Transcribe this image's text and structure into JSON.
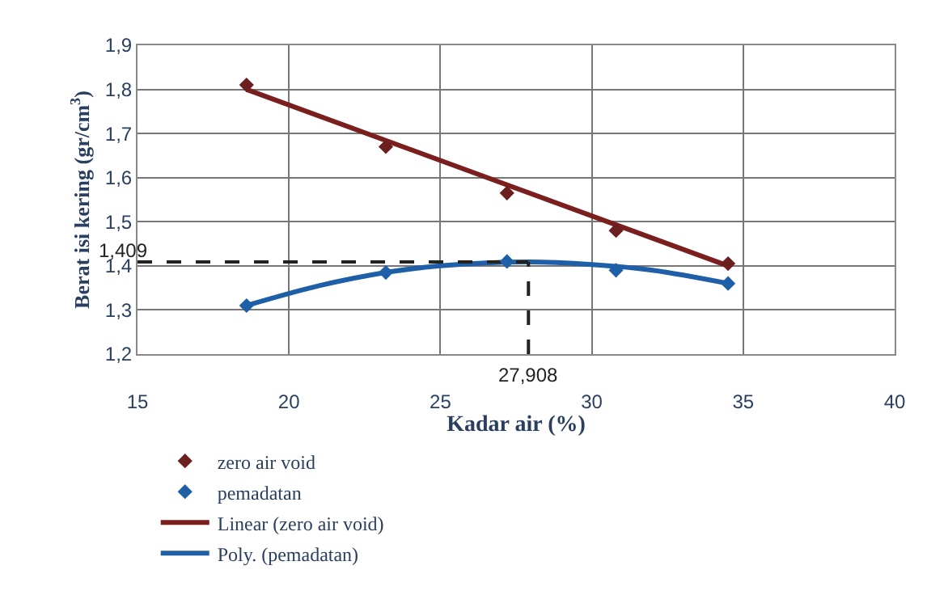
{
  "chart_data": {
    "type": "scatter",
    "xlabel": "Kadar air (%)",
    "ylabel": "Berat isi kering (gr/cm$^{3}$)",
    "xlim": [
      15,
      40
    ],
    "xticks": [
      15,
      20,
      25,
      30,
      35,
      40
    ],
    "ylim": [
      1.2,
      1.9
    ],
    "yticks": [
      {
        "value": 1.2,
        "label": "1,2"
      },
      {
        "value": 1.3,
        "label": "1,3"
      },
      {
        "value": 1.4,
        "label": "1,4"
      },
      {
        "value": 1.5,
        "label": "1,5"
      },
      {
        "value": 1.6,
        "label": "1,6"
      },
      {
        "value": 1.7,
        "label": "1,7"
      },
      {
        "value": 1.8,
        "label": "1,8"
      },
      {
        "value": 1.9,
        "label": "1,9"
      }
    ],
    "grid": true,
    "legend": "bottom",
    "series": [
      {
        "name": "zero air void",
        "marker": "diamond",
        "color": "#6b1f1f",
        "x": [
          18.6,
          23.2,
          27.2,
          30.8,
          34.5
        ],
        "values": [
          1.81,
          1.67,
          1.565,
          1.48,
          1.405
        ]
      },
      {
        "name": "pemadatan",
        "marker": "diamond",
        "color": "#1f5fa8",
        "x": [
          18.6,
          23.2,
          27.2,
          30.8,
          34.5
        ],
        "values": [
          1.31,
          1.385,
          1.41,
          1.39,
          1.36
        ]
      },
      {
        "name": "Linear (zero air void)",
        "type": "line",
        "marker": "none",
        "line_style": "solid",
        "color": "#7b1e1e",
        "x": [
          18.6,
          34.5
        ],
        "values": [
          1.8,
          1.4
        ]
      },
      {
        "name": "Poly. (pemadatan)",
        "type": "line",
        "marker": "none",
        "line_style": "solid",
        "color": "#1f5fa8",
        "x": [
          18.6,
          21,
          23.2,
          25,
          27.908,
          30,
          32,
          34.5
        ],
        "values": [
          1.31,
          1.355,
          1.385,
          1.4,
          1.409,
          1.403,
          1.39,
          1.36
        ]
      },
      {
        "type": "line",
        "marker": "none",
        "line_style": "dashed",
        "color": "#222222",
        "x": [
          15,
          27.908
        ],
        "values": [
          1.409,
          1.409
        ]
      },
      {
        "type": "line",
        "marker": "none",
        "line_style": "dashed",
        "color": "#222222",
        "x": [
          27.908,
          27.908
        ],
        "values": [
          1.2,
          1.409
        ]
      }
    ],
    "annotations": [
      {
        "text": "1,409",
        "x": 15,
        "y": 1.409
      },
      {
        "text": "27,908",
        "x": 27.908,
        "y": 1.2
      }
    ]
  }
}
